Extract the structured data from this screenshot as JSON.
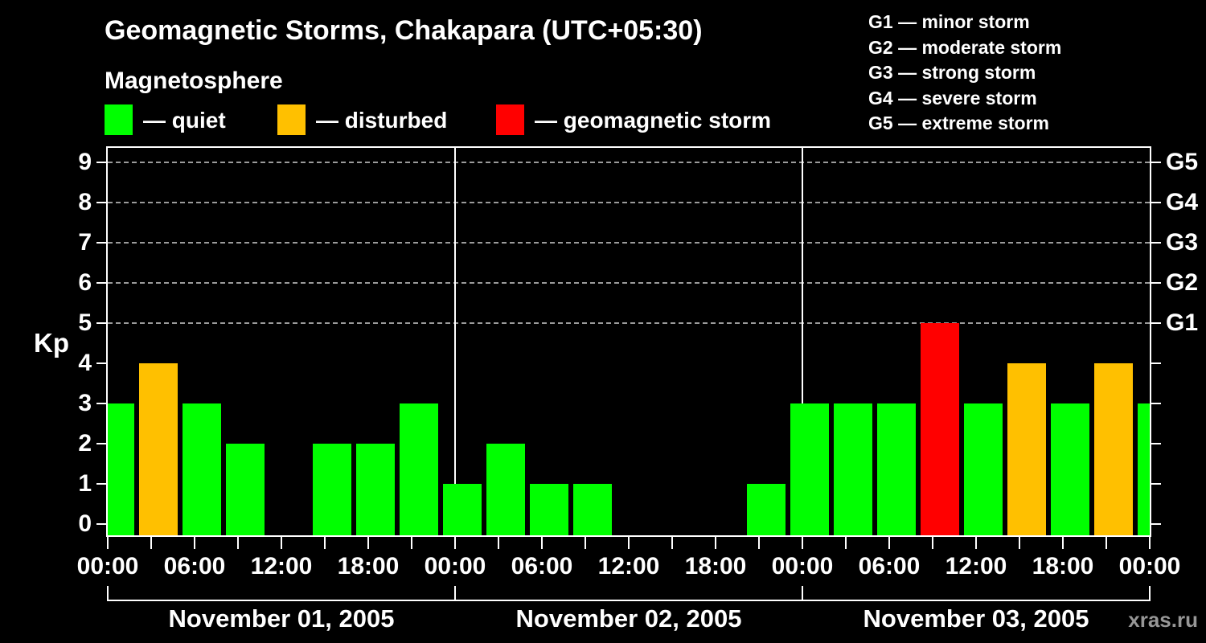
{
  "header": {
    "title": "Geomagnetic Storms, Chakapara (UTC+05:30)",
    "subtitle": "Magnetosphere"
  },
  "legend": {
    "items": [
      {
        "name": "quiet",
        "label": "— quiet",
        "color": "#00ff00"
      },
      {
        "name": "disturbed",
        "label": "— disturbed",
        "color": "#ffc000"
      },
      {
        "name": "storm",
        "label": "— geomagnetic storm",
        "color": "#ff0000"
      }
    ]
  },
  "g_legend": [
    {
      "code": "G1",
      "label": "G1 — minor storm"
    },
    {
      "code": "G2",
      "label": "G2 — moderate storm"
    },
    {
      "code": "G3",
      "label": "G3 — strong storm"
    },
    {
      "code": "G4",
      "label": "G4 — severe storm"
    },
    {
      "code": "G5",
      "label": "G5 — extreme storm"
    }
  ],
  "watermark": "xras.ru",
  "colors": {
    "background": "#000000",
    "text": "#ffffff",
    "grid": "#9b9b9b",
    "quiet": "#00ff00",
    "disturbed": "#ffc000",
    "storm": "#ff0000",
    "watermark": "#969696"
  },
  "chart_data": {
    "type": "bar",
    "title": "Geomagnetic Storms, Chakapara (UTC+05:30)",
    "ylabel": "Kp",
    "ylim": [
      0,
      9
    ],
    "interval_hours": 3,
    "grid_dashed_levels": [
      5,
      6,
      7,
      8,
      9
    ],
    "y_tick_labels": [
      "0",
      "1",
      "2",
      "3",
      "4",
      "5",
      "6",
      "7",
      "8",
      "9"
    ],
    "g_axis_labels": [
      {
        "label": "G1",
        "kp": 5
      },
      {
        "label": "G2",
        "kp": 6
      },
      {
        "label": "G3",
        "kp": 7
      },
      {
        "label": "G4",
        "kp": 8
      },
      {
        "label": "G5",
        "kp": 9
      }
    ],
    "x_tick_labels": [
      "00:00",
      "06:00",
      "12:00",
      "18:00",
      "00:00",
      "06:00",
      "12:00",
      "18:00",
      "00:00",
      "06:00",
      "12:00",
      "18:00",
      "00:00"
    ],
    "days": [
      {
        "label": "November 01, 2005",
        "kp": [
          3,
          4,
          3,
          2,
          null,
          2,
          2,
          3
        ]
      },
      {
        "label": "November 02, 2005",
        "kp": [
          1,
          2,
          1,
          1,
          null,
          null,
          null,
          1
        ]
      },
      {
        "label": "November 03, 2005",
        "kp": [
          3,
          3,
          3,
          5,
          3,
          4,
          3,
          4
        ]
      }
    ],
    "next_period_partial_kp": 3,
    "color_rules": {
      "quiet_max_kp": 3,
      "disturbed_max_kp": 4,
      "storm_min_kp": 5
    },
    "legend_position": "top",
    "grid": "dashed horizontal at Kp 5–9 only"
  }
}
